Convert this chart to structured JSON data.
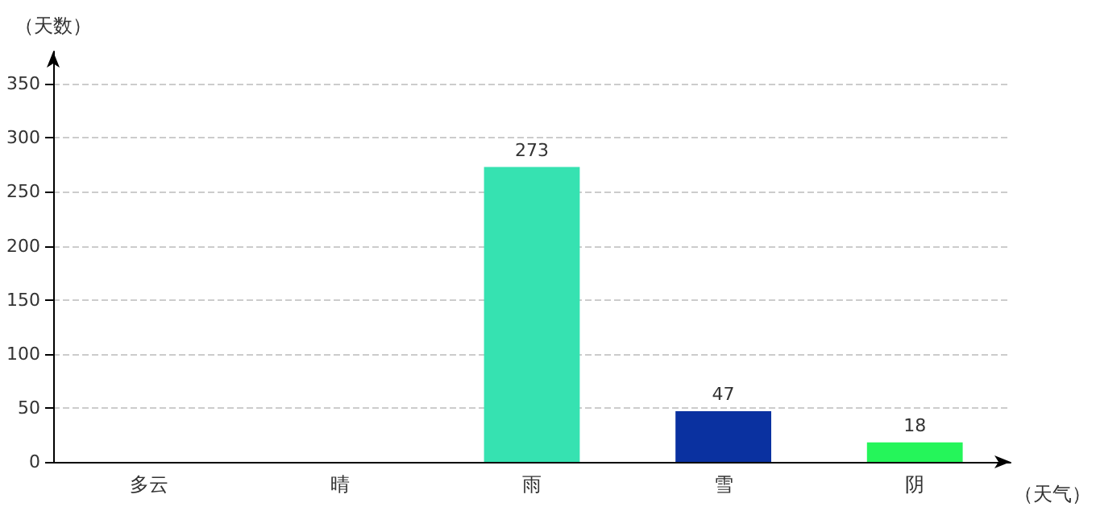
{
  "chart_data": {
    "type": "bar",
    "ylabel": "（天数）",
    "xlabel": "（天气）",
    "categories": [
      "多云",
      "晴",
      "雨",
      "雪",
      "阴"
    ],
    "values": [
      null,
      null,
      273,
      47,
      18
    ],
    "colors": [
      "#1ed3a5",
      "#0d4f4c",
      "#36e2b1",
      "#0a31a0",
      "#25f55a"
    ],
    "ylim": [
      0,
      380
    ],
    "yticks": [
      0,
      50,
      100,
      150,
      200,
      250,
      300,
      350
    ],
    "grid": "y",
    "data_labels": true
  }
}
